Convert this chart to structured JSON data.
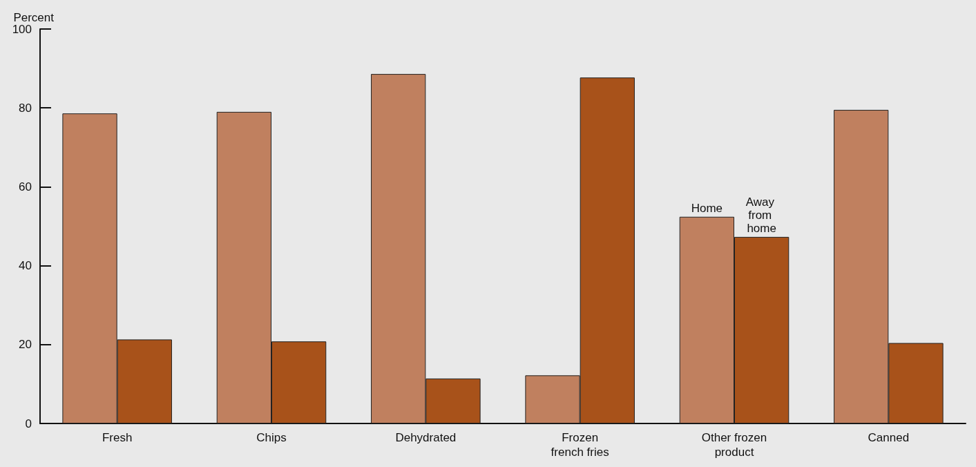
{
  "chart_data": {
    "type": "bar",
    "ylabel": "Percent",
    "categories": [
      "Fresh",
      "Chips",
      "Dehydrated",
      "Frozen\nfrench fries",
      "Other frozen\nproduct",
      "Canned"
    ],
    "series": [
      {
        "color": "#c0805f",
        "values": [
          78.6,
          79.0,
          88.6,
          12.2,
          52.4,
          79.5
        ]
      },
      {
        "color": "#a8521a",
        "values": [
          21.3,
          20.8,
          11.4,
          87.7,
          47.3,
          20.4
        ]
      }
    ],
    "annotations": [
      {
        "text": "Home",
        "x": "Other frozen\nproduct",
        "y": 52.4
      },
      {
        "text": "Away from home",
        "x": "Other frozen\nproduct",
        "y": 47.3
      }
    ],
    "ylim": [
      0,
      100
    ],
    "yticks": [
      0,
      20,
      40,
      60,
      80,
      100
    ],
    "grid": false
  }
}
